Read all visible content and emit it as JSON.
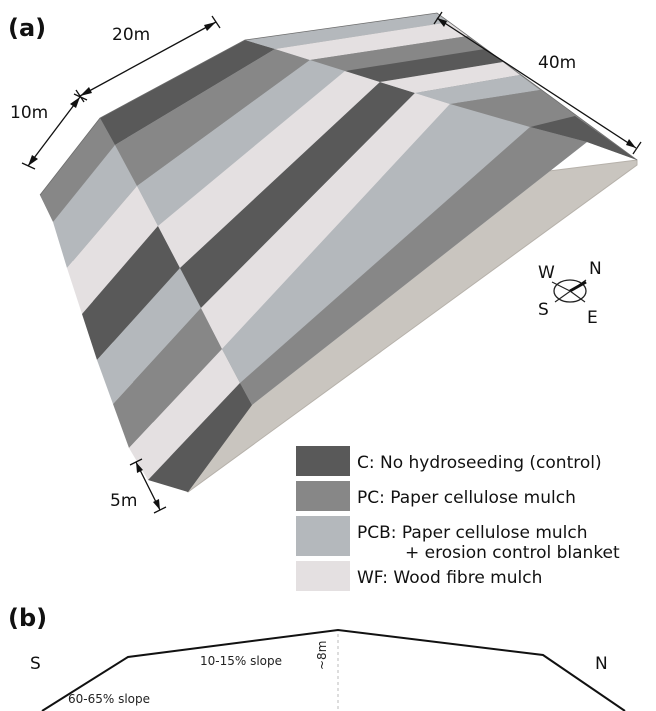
{
  "panel_a": {
    "label": "(a)",
    "dimensions": {
      "width": "20m",
      "depth": "10m",
      "length": "40m",
      "plot": "5m"
    },
    "compass": {
      "w": "W",
      "n": "N",
      "s": "S",
      "e": "E"
    },
    "colors": {
      "C": "#595959",
      "PC": "#878787",
      "PCB": "#b4b8bc",
      "WF": "#e4e0e1",
      "end_wall": "#c9c5bf",
      "edge": "#7a7672"
    }
  },
  "legend": [
    {
      "code": "C",
      "text": "C: No hydroseeding (control)",
      "color": "#595959"
    },
    {
      "code": "PC",
      "text": "PC: Paper cellulose mulch",
      "color": "#878787"
    },
    {
      "code": "PCB",
      "text": "PCB: Paper cellulose mulch",
      "text2": "+ erosion control blanket",
      "color": "#b4b8bc"
    },
    {
      "code": "WF",
      "text": "WF: Wood fibre mulch",
      "color": "#e4e0e1"
    }
  ],
  "panel_b": {
    "label": "(b)",
    "left": "S",
    "right": "N",
    "top_slope": "10-15% slope",
    "side_slope": "60-65% slope",
    "height": "~8m"
  }
}
